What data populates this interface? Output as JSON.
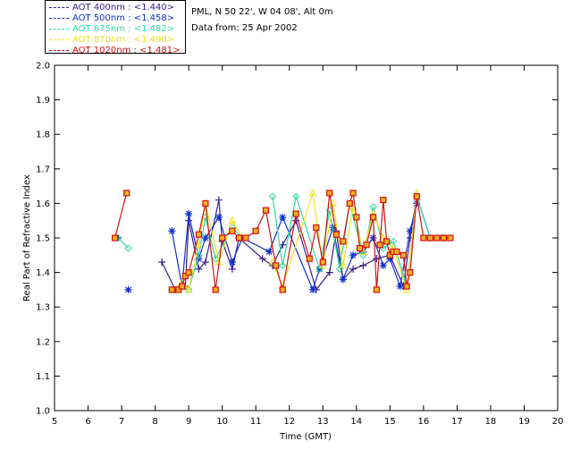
{
  "header": {
    "location": "PML, N 50 22', W 04 08', Alt 0m",
    "date_line": "Data from: 25 Apr 2002"
  },
  "colors": {
    "aot_400": "#3b1c8c",
    "aot_500": "#1030c8",
    "aot_675": "#30d8a8",
    "aot_870": "#f0e020",
    "aot_1020": "#d01010",
    "marker_1020_fill": "#f0b020"
  },
  "chart_data": {
    "type": "line",
    "xlabel": "Time (GMT)",
    "ylabel": "Real Part of Refractive Index",
    "xlim": [
      5,
      20
    ],
    "ylim": [
      1.0,
      2.0
    ],
    "xticks": [
      "5",
      "6",
      "7",
      "8",
      "9",
      "10",
      "11",
      "12",
      "13",
      "14",
      "15",
      "16",
      "17",
      "18",
      "19",
      "20"
    ],
    "yticks": [
      "1.0",
      "1.1",
      "1.2",
      "1.3",
      "1.4",
      "1.5",
      "1.6",
      "1.7",
      "1.8",
      "1.9",
      "2.0"
    ],
    "legend_position": "top-left",
    "series": [
      {
        "name": "AOT  400nm : <1.440>",
        "marker": "plus",
        "x": [
          6.9,
          8.2,
          8.6,
          8.9,
          9.0,
          9.3,
          9.5,
          9.9,
          10.0,
          10.3,
          10.5,
          11.2,
          11.5,
          11.8,
          12.2,
          12.8,
          13.2,
          13.4,
          13.6,
          13.9,
          14.2,
          14.6,
          15.0,
          15.4,
          15.6,
          15.8,
          16.2,
          16.6
        ],
        "y": [
          1.5,
          1.43,
          1.35,
          1.36,
          1.55,
          1.41,
          1.43,
          1.61,
          1.49,
          1.41,
          1.5,
          1.44,
          1.42,
          1.48,
          1.55,
          1.35,
          1.4,
          1.52,
          1.38,
          1.41,
          1.42,
          1.44,
          1.45,
          1.36,
          1.5,
          1.62,
          1.5,
          1.5
        ]
      },
      {
        "name": "AOT  500nm : <1.458>",
        "marker": "star",
        "x": [
          7.2,
          8.5,
          8.8,
          9.0,
          9.3,
          9.5,
          9.9,
          10.3,
          10.6,
          11.4,
          11.8,
          12.7,
          12.9,
          13.3,
          13.6,
          13.9,
          14.2,
          14.5,
          14.8,
          15.0,
          15.3,
          15.6,
          15.8
        ],
        "y": [
          1.35,
          1.52,
          1.36,
          1.57,
          1.44,
          1.5,
          1.56,
          1.43,
          1.5,
          1.46,
          1.56,
          1.35,
          1.41,
          1.53,
          1.38,
          1.45,
          1.46,
          1.5,
          1.42,
          1.44,
          1.36,
          1.52,
          1.6
        ]
      },
      {
        "name": "AOT  675nm : <1.482>",
        "marker": "diamond",
        "x": [
          6.9,
          7.2,
          8.5,
          8.8,
          9.0,
          9.3,
          9.5,
          9.8,
          10.3,
          10.6,
          11.5,
          11.8,
          12.2,
          12.9,
          13.2,
          13.5,
          13.8,
          14.2,
          14.5,
          14.8,
          15.1,
          15.5,
          15.8,
          16.2,
          16.6
        ],
        "y": [
          1.5,
          1.47,
          1.35,
          1.36,
          1.35,
          1.45,
          1.56,
          1.44,
          1.53,
          1.5,
          1.62,
          1.42,
          1.62,
          1.41,
          1.58,
          1.41,
          1.6,
          1.45,
          1.59,
          1.47,
          1.49,
          1.36,
          1.62,
          1.5,
          1.5
        ]
      },
      {
        "name": "AOT  870nm : <1.490>",
        "marker": "triangle",
        "x": [
          8.5,
          8.8,
          9.0,
          9.3,
          9.5,
          9.9,
          10.3,
          10.6,
          11.5,
          11.8,
          12.7,
          13.0,
          13.3,
          13.6,
          13.9,
          14.2,
          14.5,
          14.8,
          15.1,
          15.5,
          15.8
        ],
        "y": [
          1.35,
          1.37,
          1.35,
          1.48,
          1.6,
          1.43,
          1.55,
          1.5,
          1.43,
          1.36,
          1.63,
          1.42,
          1.6,
          1.42,
          1.59,
          1.46,
          1.57,
          1.5,
          1.47,
          1.35,
          1.63
        ]
      },
      {
        "name": "AOT 1020nm : <1.481>",
        "marker": "square",
        "x": [
          6.8,
          7.15,
          8.5,
          8.7,
          8.8,
          8.9,
          9.0,
          9.3,
          9.5,
          9.8,
          10.0,
          10.3,
          10.5,
          10.7,
          11.0,
          11.3,
          11.6,
          11.8,
          12.2,
          12.6,
          12.8,
          13.0,
          13.2,
          13.4,
          13.6,
          13.8,
          13.9,
          14.0,
          14.1,
          14.3,
          14.5,
          14.6,
          14.7,
          14.8,
          14.9,
          15.0,
          15.1,
          15.2,
          15.4,
          15.5,
          15.6,
          15.8,
          16.0,
          16.2,
          16.4,
          16.6,
          16.8
        ],
        "y": [
          1.5,
          1.63,
          1.35,
          1.35,
          1.36,
          1.39,
          1.4,
          1.51,
          1.6,
          1.35,
          1.5,
          1.52,
          1.5,
          1.5,
          1.52,
          1.58,
          1.42,
          1.35,
          1.57,
          1.44,
          1.53,
          1.43,
          1.63,
          1.51,
          1.49,
          1.6,
          1.63,
          1.56,
          1.47,
          1.48,
          1.56,
          1.35,
          1.48,
          1.61,
          1.49,
          1.45,
          1.46,
          1.46,
          1.45,
          1.36,
          1.4,
          1.62,
          1.5,
          1.5,
          1.5,
          1.5,
          1.5
        ]
      }
    ]
  }
}
